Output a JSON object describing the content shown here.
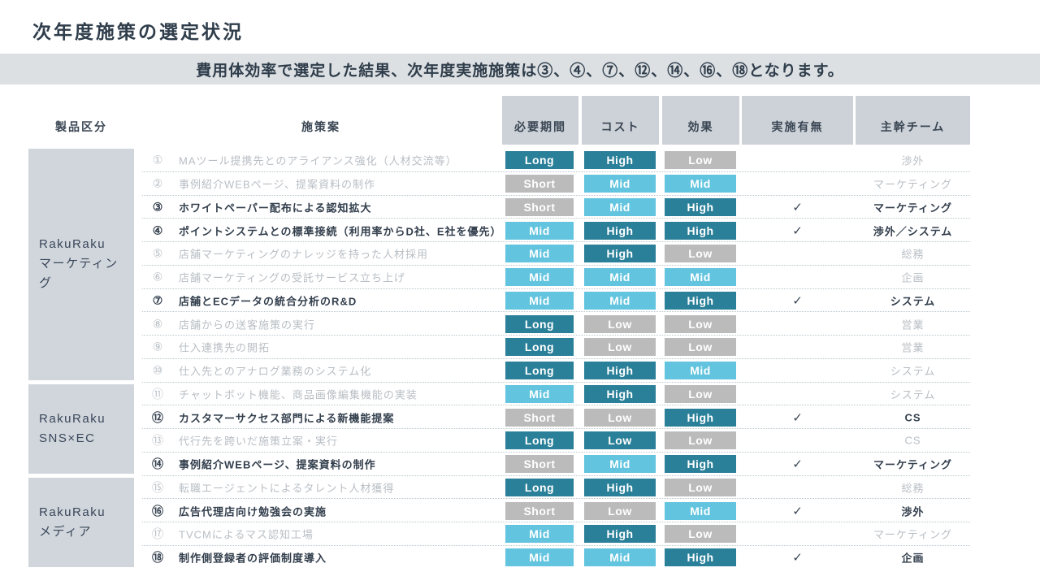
{
  "slide": {
    "title": "次年度施策の選定状況",
    "banner_text": "費用体効率で選定した結果、次年度実施施策は③、④、⑦、⑫、⑭、⑯、⑱となります。"
  },
  "colors": {
    "badge_dark_teal": "#2B8099",
    "badge_light_blue": "#62C4DE",
    "badge_gray": "#BBBBBB",
    "header_cell_bg": "#CDD2D8",
    "group_cell_bg": "#D0D6DB",
    "banner_bg": "#DCE0E3",
    "text_dark": "#333F4D",
    "text_inactive": "#B8BEC4"
  },
  "table": {
    "headers": {
      "category": "製品区分",
      "proposal": "施策案",
      "period": "必要期間",
      "cost": "コスト",
      "effect": "効果",
      "implemented": "実施有無",
      "team": "主幹チーム"
    },
    "check_glyph": "✓",
    "groups": [
      {
        "label_lines": [
          "RakuRaku",
          "マーケティング"
        ],
        "row_span": 10
      },
      {
        "label_lines": [
          "RakuRaku",
          "SNS×EC"
        ],
        "row_span": 4
      },
      {
        "label_lines": [
          "RakuRaku",
          "メディア"
        ],
        "row_span": 4
      }
    ],
    "rows": [
      {
        "num": "①",
        "proposal": "MAツール提携先とのアライアンス強化（人材交流等）",
        "selected": false,
        "period": {
          "label": "Long",
          "level": "dark"
        },
        "cost": {
          "label": "High",
          "level": "dark"
        },
        "effect": {
          "label": "Low",
          "level": "gray"
        },
        "implemented": false,
        "team": "渉外"
      },
      {
        "num": "②",
        "proposal": "事例紹介WEBページ、提案資料の制作",
        "selected": false,
        "period": {
          "label": "Short",
          "level": "gray"
        },
        "cost": {
          "label": "Mid",
          "level": "light"
        },
        "effect": {
          "label": "Mid",
          "level": "light"
        },
        "implemented": false,
        "team": "マーケティング"
      },
      {
        "num": "③",
        "proposal": "ホワイトペーパー配布による認知拡大",
        "selected": true,
        "period": {
          "label": "Short",
          "level": "gray"
        },
        "cost": {
          "label": "Mid",
          "level": "light"
        },
        "effect": {
          "label": "High",
          "level": "dark"
        },
        "implemented": true,
        "team": "マーケティング"
      },
      {
        "num": "④",
        "proposal": "ポイントシステムとの標準接続（利用率からD社、E社を優先）",
        "selected": true,
        "period": {
          "label": "Mid",
          "level": "light"
        },
        "cost": {
          "label": "High",
          "level": "dark"
        },
        "effect": {
          "label": "High",
          "level": "dark"
        },
        "implemented": true,
        "team": "渉外／システム"
      },
      {
        "num": "⑤",
        "proposal": "店舗マーケティングのナレッジを持った人材採用",
        "selected": false,
        "period": {
          "label": "Mid",
          "level": "light"
        },
        "cost": {
          "label": "High",
          "level": "dark"
        },
        "effect": {
          "label": "Low",
          "level": "gray"
        },
        "implemented": false,
        "team": "総務"
      },
      {
        "num": "⑥",
        "proposal": "店舗マーケティングの受託サービス立ち上げ",
        "selected": false,
        "period": {
          "label": "Mid",
          "level": "light"
        },
        "cost": {
          "label": "Mid",
          "level": "light"
        },
        "effect": {
          "label": "Mid",
          "level": "light"
        },
        "implemented": false,
        "team": "企画"
      },
      {
        "num": "⑦",
        "proposal": "店舗とECデータの統合分析のR&D",
        "selected": true,
        "period": {
          "label": "Mid",
          "level": "light"
        },
        "cost": {
          "label": "Mid",
          "level": "light"
        },
        "effect": {
          "label": "High",
          "level": "dark"
        },
        "implemented": true,
        "team": "システム"
      },
      {
        "num": "⑧",
        "proposal": "店舗からの送客施策の実行",
        "selected": false,
        "period": {
          "label": "Long",
          "level": "dark"
        },
        "cost": {
          "label": "Low",
          "level": "gray"
        },
        "effect": {
          "label": "Low",
          "level": "gray"
        },
        "implemented": false,
        "team": "営業"
      },
      {
        "num": "⑨",
        "proposal": "仕入連携先の開拓",
        "selected": false,
        "period": {
          "label": "Long",
          "level": "dark"
        },
        "cost": {
          "label": "Low",
          "level": "gray"
        },
        "effect": {
          "label": "Low",
          "level": "gray"
        },
        "implemented": false,
        "team": "営業"
      },
      {
        "num": "⑩",
        "proposal": "仕入先とのアナログ業務のシステム化",
        "selected": false,
        "period": {
          "label": "Long",
          "level": "dark"
        },
        "cost": {
          "label": "High",
          "level": "dark"
        },
        "effect": {
          "label": "Mid",
          "level": "light"
        },
        "implemented": false,
        "team": "システム"
      },
      {
        "num": "⑪",
        "proposal": "チャットボット機能、商品画像編集機能の実装",
        "selected": false,
        "period": {
          "label": "Mid",
          "level": "light"
        },
        "cost": {
          "label": "High",
          "level": "dark"
        },
        "effect": {
          "label": "Low",
          "level": "gray"
        },
        "implemented": false,
        "team": "システム"
      },
      {
        "num": "⑫",
        "proposal": "カスタマーサクセス部門による新機能提案",
        "selected": true,
        "period": {
          "label": "Short",
          "level": "gray"
        },
        "cost": {
          "label": "Low",
          "level": "gray"
        },
        "effect": {
          "label": "High",
          "level": "dark"
        },
        "implemented": true,
        "team": "CS"
      },
      {
        "num": "⑬",
        "proposal": "代行先を跨いだ施策立案・実行",
        "selected": false,
        "period": {
          "label": "Long",
          "level": "dark"
        },
        "cost": {
          "label": "Low",
          "level": "dark"
        },
        "effect": {
          "label": "Low",
          "level": "gray"
        },
        "implemented": false,
        "team": "CS"
      },
      {
        "num": "⑭",
        "proposal": "事例紹介WEBページ、提案資料の制作",
        "selected": true,
        "period": {
          "label": "Short",
          "level": "gray"
        },
        "cost": {
          "label": "Mid",
          "level": "light"
        },
        "effect": {
          "label": "High",
          "level": "dark"
        },
        "implemented": true,
        "team": "マーケティング"
      },
      {
        "num": "⑮",
        "proposal": "転職エージェントによるタレント人材獲得",
        "selected": false,
        "period": {
          "label": "Long",
          "level": "dark"
        },
        "cost": {
          "label": "High",
          "level": "dark"
        },
        "effect": {
          "label": "Low",
          "level": "gray"
        },
        "implemented": false,
        "team": "総務"
      },
      {
        "num": "⑯",
        "proposal": "広告代理店向け勉強会の実施",
        "selected": true,
        "period": {
          "label": "Short",
          "level": "gray"
        },
        "cost": {
          "label": "Low",
          "level": "gray"
        },
        "effect": {
          "label": "Mid",
          "level": "light"
        },
        "implemented": true,
        "team": "渉外"
      },
      {
        "num": "⑰",
        "proposal": "TVCMによるマス認知工場",
        "selected": false,
        "period": {
          "label": "Mid",
          "level": "light"
        },
        "cost": {
          "label": "High",
          "level": "dark"
        },
        "effect": {
          "label": "Low",
          "level": "gray"
        },
        "implemented": false,
        "team": "マーケティング"
      },
      {
        "num": "⑱",
        "proposal": "制作側登録者の評価制度導入",
        "selected": true,
        "period": {
          "label": "Mid",
          "level": "light"
        },
        "cost": {
          "label": "Mid",
          "level": "light"
        },
        "effect": {
          "label": "High",
          "level": "dark"
        },
        "implemented": true,
        "team": "企画"
      }
    ]
  }
}
